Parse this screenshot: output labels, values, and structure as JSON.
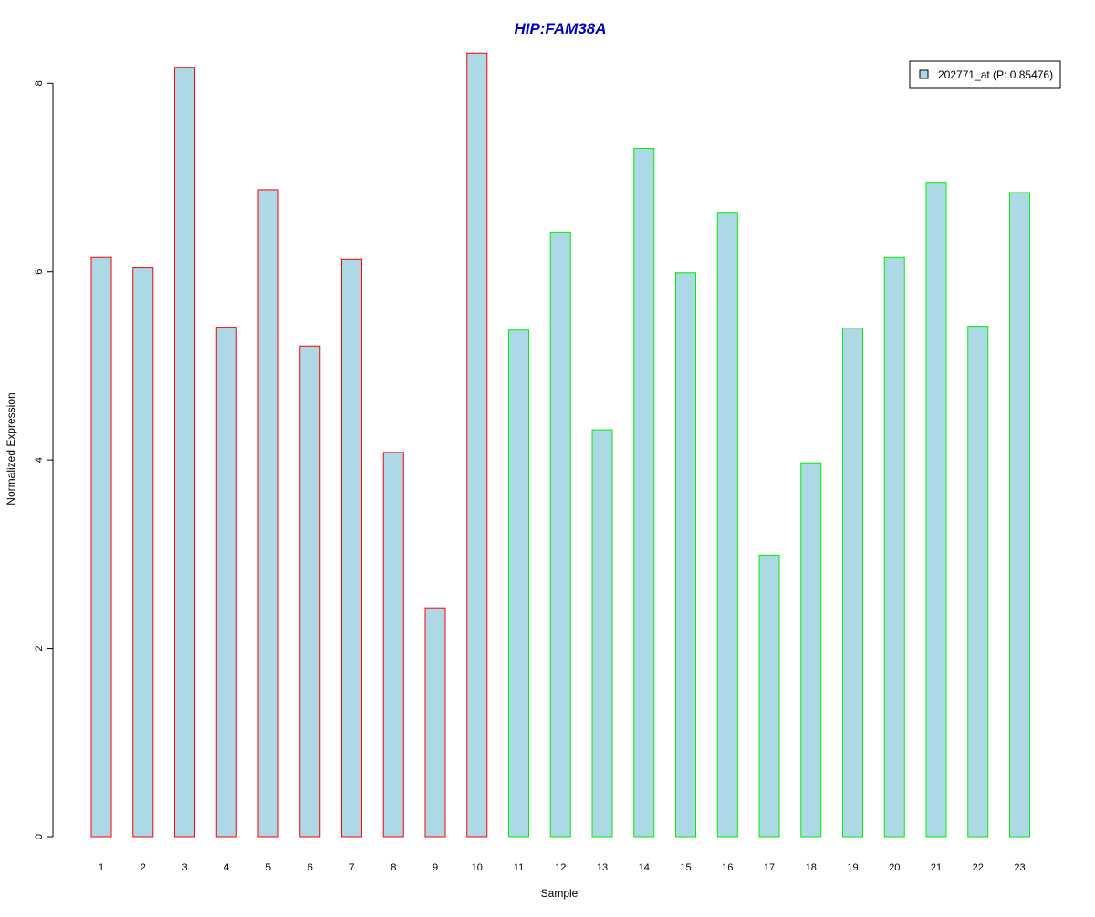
{
  "chart_data": {
    "type": "bar",
    "title": "HIP:FAM38A",
    "xlabel": "Sample",
    "ylabel": "Normalized Expression",
    "ylim": [
      0,
      8.4
    ],
    "yticks": [
      0,
      2,
      4,
      6,
      8
    ],
    "categories": [
      "1",
      "2",
      "3",
      "4",
      "5",
      "6",
      "7",
      "8",
      "9",
      "10",
      "11",
      "12",
      "13",
      "14",
      "15",
      "16",
      "17",
      "18",
      "19",
      "20",
      "21",
      "22",
      "23"
    ],
    "series": [
      {
        "name": "202771_at (P: 0.85476)",
        "values": [
          6.15,
          6.04,
          8.17,
          5.41,
          6.87,
          5.21,
          6.13,
          4.08,
          2.43,
          8.32,
          5.38,
          6.42,
          4.32,
          7.31,
          5.99,
          6.63,
          2.99,
          3.97,
          5.4,
          6.15,
          6.94,
          5.42,
          6.84
        ]
      }
    ],
    "groups": [
      1,
      1,
      1,
      1,
      1,
      1,
      1,
      1,
      1,
      1,
      2,
      2,
      2,
      2,
      2,
      2,
      2,
      2,
      2,
      2,
      2,
      2,
      2
    ],
    "grid": false,
    "legend_position": "top-right"
  },
  "colors": {
    "title": "#0000CC",
    "bar_fill": "#ADD8E6",
    "group1_border": "#FF0000",
    "group2_border": "#00EE00",
    "axis": "#000000"
  }
}
